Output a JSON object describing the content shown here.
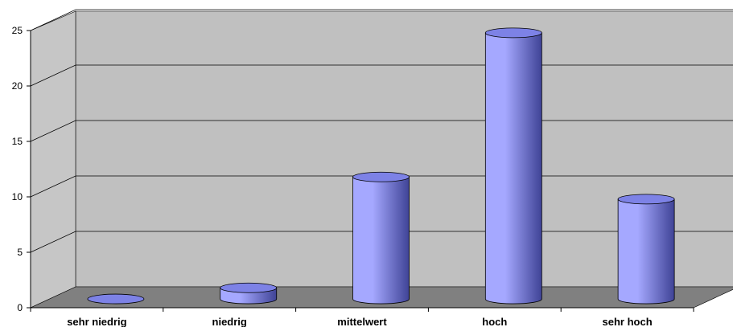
{
  "chart_data": {
    "type": "bar",
    "style": "3d-cylinder",
    "categories": [
      "sehr niedrig",
      "niedrig",
      "mittelwert",
      "hoch",
      "sehr hoch"
    ],
    "values": [
      0,
      1,
      11,
      24,
      9
    ],
    "ylim": [
      0,
      25
    ],
    "yticks": [
      "0",
      "5",
      "10",
      "15",
      "20",
      "25"
    ],
    "grid": true,
    "legend": "none",
    "colors": {
      "bar_light": "#a5a8ff",
      "bar_dark": "#3f4396",
      "bar_top": "#7d82e6",
      "back_wall": "#c0c0c0",
      "side_wall": "#c6c6c6",
      "floor": "#808080"
    }
  }
}
